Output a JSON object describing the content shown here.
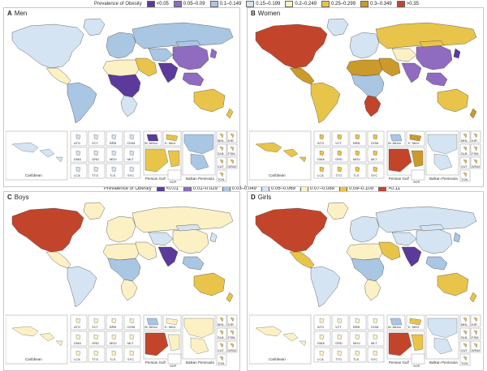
{
  "legend_adult": {
    "title": "Prevalence of Obesity",
    "bins": [
      {
        "label": "<0.05",
        "color": "#5b3a9c"
      },
      {
        "label": "0.05–0.09",
        "color": "#8f6cc0"
      },
      {
        "label": "0.1–0.149",
        "color": "#a9c6e3"
      },
      {
        "label": "0.15–0.199",
        "color": "#d4e4f2"
      },
      {
        "label": "0.2–0.249",
        "color": "#fbf1c4"
      },
      {
        "label": "0.25–0.299",
        "color": "#e8c44a"
      },
      {
        "label": "0.3–0.349",
        "color": "#cc9a2b"
      },
      {
        "label": ">0.35",
        "color": "#c2452b"
      }
    ]
  },
  "legend_child": {
    "title": "Prevalence of Obesity",
    "bins": [
      {
        "label": "<0.01",
        "color": "#5b3a9c"
      },
      {
        "label": "0.01–0.029",
        "color": "#8f6cc0"
      },
      {
        "label": "0.03–0.049",
        "color": "#a9c6e3"
      },
      {
        "label": "0.05–0.069",
        "color": "#d4e4f2"
      },
      {
        "label": "0.07–0.089",
        "color": "#fbf1c4"
      },
      {
        "label": "0.09–0.109",
        "color": "#e8c44a"
      },
      {
        "label": ">0.11",
        "color": "#c2452b"
      }
    ]
  },
  "panels": [
    {
      "letter": "A",
      "title": "Men",
      "regions": {
        "na": 3,
        "greenland": 3,
        "ca": 4,
        "sa": 2,
        "europe": 2,
        "russia": 2,
        "mideast": 5,
        "nafrica": 4,
        "africa": 0,
        "safrica": 3,
        "casia": 2,
        "south_asia": 0,
        "china": 1,
        "seasia": 1,
        "japan": 1,
        "australia": 5,
        "nz": 5,
        "mongolia": 2
      },
      "insets": {
        "caribbean": 3,
        "persian": 5,
        "balkan": 2
      }
    },
    {
      "letter": "B",
      "title": "Women",
      "regions": {
        "na": 7,
        "greenland": 3,
        "ca": 6,
        "sa": 5,
        "europe": 3,
        "russia": 5,
        "mideast": 6,
        "nafrica": 6,
        "africa": 2,
        "safrica": 7,
        "casia": 4,
        "south_asia": 1,
        "china": 1,
        "seasia": 1,
        "japan": 0,
        "australia": 5,
        "nz": 6,
        "mongolia": 5
      },
      "insets": {
        "caribbean": 5,
        "persian": 7,
        "balkan": 3
      }
    },
    {
      "letter": "C",
      "title": "Boys",
      "regions": {
        "na": 6,
        "greenland": 4,
        "ca": 4,
        "sa": 3,
        "europe": 4,
        "russia": 4,
        "mideast": 4,
        "nafrica": 4,
        "africa": 2,
        "safrica": 4,
        "casia": 3,
        "south_asia": 0,
        "china": 4,
        "seasia": 2,
        "japan": 3,
        "australia": 5,
        "nz": 5,
        "mongolia": 3
      },
      "insets": {
        "caribbean": 4,
        "persian": 6,
        "balkan": 4
      }
    },
    {
      "letter": "D",
      "title": "Girls",
      "regions": {
        "na": 6,
        "greenland": 4,
        "ca": 5,
        "sa": 3,
        "europe": 3,
        "russia": 3,
        "mideast": 5,
        "nafrica": 4,
        "africa": 2,
        "safrica": 4,
        "casia": 3,
        "south_asia": 0,
        "china": 3,
        "seasia": 2,
        "japan": 2,
        "australia": 5,
        "nz": 5,
        "mongolia": 3
      },
      "insets": {
        "caribbean": 4,
        "persian": 6,
        "balkan": 3
      }
    }
  ],
  "inset_labels": {
    "caribbean": "Caribbean",
    "persian": "Persian Gulf",
    "balkan": "Balkan Peninsula",
    "row1": [
      "ATG",
      "VCT",
      "BRB",
      "DOM"
    ],
    "row2": [
      "DMA",
      "GRD",
      "MDV",
      "MLT"
    ],
    "row3": [
      "LCA",
      "TTO",
      "TLS",
      "SYC"
    ],
    "mid": [
      "W. Africa",
      "E. Med.",
      "SGP"
    ],
    "right": [
      "MHL",
      "KIR",
      "SLB",
      "FSM",
      "VUT",
      "WSM",
      "TON"
    ]
  }
}
